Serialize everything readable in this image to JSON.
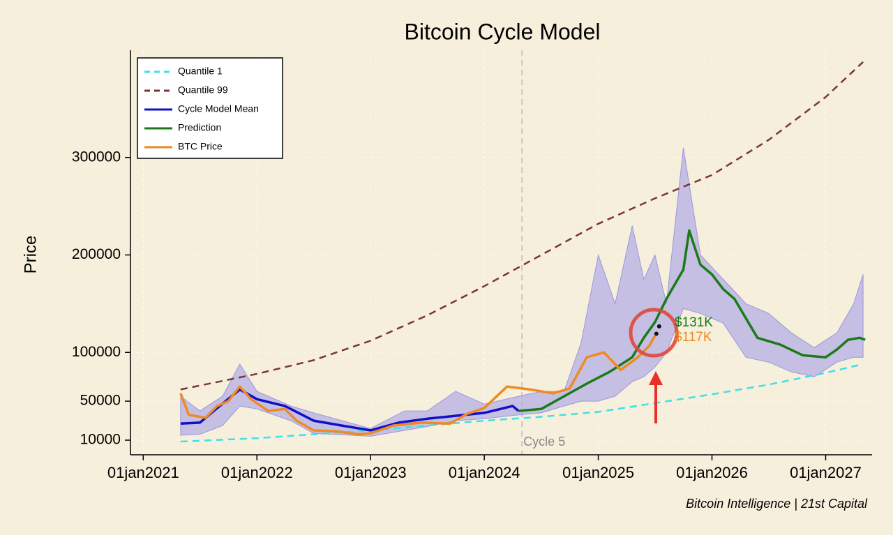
{
  "chart_data": {
    "type": "line",
    "title": "Bitcoin Cycle Model",
    "ylabel": "Price",
    "footer": "Bitcoin Intelligence | 21st Capital",
    "xlim": [
      "2020-11-21",
      "2027-05-30"
    ],
    "ylim": [
      0,
      410000
    ],
    "xticks": [
      {
        "value": "2021-01-01",
        "label": "01jan2021"
      },
      {
        "value": "2022-01-01",
        "label": "01jan2022"
      },
      {
        "value": "2023-01-01",
        "label": "01jan2023"
      },
      {
        "value": "2024-01-01",
        "label": "01jan2024"
      },
      {
        "value": "2025-01-01",
        "label": "01jan2025"
      },
      {
        "value": "2026-01-01",
        "label": "01jan2026"
      },
      {
        "value": "2027-01-01",
        "label": "01jan2027"
      }
    ],
    "yticks": [
      10000,
      50000,
      100000,
      200000,
      300000
    ],
    "grid": true,
    "legend": "top-left",
    "cycle_marker": {
      "label": "Cycle 5",
      "x": "2024-05-01"
    },
    "annotations": [
      {
        "text": "$131K",
        "color": "#1a7a1a"
      },
      {
        "text": "$117K",
        "color": "#f08a20"
      }
    ],
    "band": {
      "color": "#b4afe6",
      "x": [
        "2021-05-01",
        "2021-07-02",
        "2021-09-13",
        "2021-11-07",
        "2022-01-01",
        "2022-04-20",
        "2022-07-02",
        "2023-01-01",
        "2023-04-20",
        "2023-07-02",
        "2023-10-01",
        "2024-01-01",
        "2024-04-20",
        "2024-07-02",
        "2024-09-13",
        "2024-11-07",
        "2025-01-01",
        "2025-02-24",
        "2025-04-20",
        "2025-05-27",
        "2025-07-02",
        "2025-08-08",
        "2025-10-01",
        "2025-11-25",
        "2026-02-06",
        "2026-04-20",
        "2026-07-02",
        "2026-09-13",
        "2026-11-25",
        "2027-02-06",
        "2027-04-01",
        "2027-05-01"
      ],
      "upper": [
        55000,
        40000,
        55000,
        88000,
        60000,
        45000,
        38000,
        22000,
        40000,
        40000,
        60000,
        47000,
        55000,
        60000,
        60000,
        110000,
        200000,
        150000,
        230000,
        175000,
        200000,
        150000,
        310000,
        200000,
        175000,
        150000,
        140000,
        120000,
        105000,
        120000,
        150000,
        180000
      ],
      "lower": [
        15000,
        16000,
        25000,
        45000,
        42000,
        30000,
        17000,
        14000,
        20000,
        24000,
        30000,
        32000,
        36000,
        38000,
        45000,
        50000,
        50000,
        55000,
        70000,
        75000,
        85000,
        100000,
        145000,
        140000,
        130000,
        95000,
        90000,
        80000,
        75000,
        90000,
        95000,
        95000
      ]
    },
    "series": [
      {
        "name": "Quantile 1",
        "color": "#3de0e8",
        "dash": true,
        "x": [
          "2021-05-01",
          "2022-01-01",
          "2022-07-02",
          "2023-01-01",
          "2023-07-02",
          "2024-01-01",
          "2024-07-02",
          "2025-01-01",
          "2025-07-02",
          "2026-01-01",
          "2026-07-02",
          "2027-01-01",
          "2027-05-01"
        ],
        "values": [
          8600,
          12000,
          16000,
          20000,
          25000,
          30000,
          34000,
          39000,
          48000,
          57000,
          67000,
          79000,
          88000
        ]
      },
      {
        "name": "Quantile 99",
        "color": "#7a3535",
        "dash": true,
        "x": [
          "2021-05-01",
          "2022-01-01",
          "2022-07-02",
          "2023-01-01",
          "2023-07-02",
          "2024-01-01",
          "2024-07-02",
          "2025-01-01",
          "2025-07-02",
          "2026-01-01",
          "2026-07-02",
          "2027-01-01",
          "2027-05-01"
        ],
        "values": [
          62000,
          78000,
          92000,
          112000,
          138000,
          168000,
          200000,
          232000,
          258000,
          282000,
          318000,
          362000,
          398000
        ]
      },
      {
        "name": "Cycle Model Mean",
        "color": "#1010c8",
        "dash": false,
        "x": [
          "2021-05-01",
          "2021-07-02",
          "2021-08-08",
          "2021-11-07",
          "2022-01-01",
          "2022-04-01",
          "2022-07-02",
          "2022-10-01",
          "2023-01-01",
          "2023-04-01",
          "2023-07-02",
          "2023-10-01",
          "2024-01-01",
          "2024-04-01",
          "2024-04-20"
        ],
        "values": [
          27000,
          28000,
          38000,
          62000,
          52000,
          45000,
          30000,
          25000,
          20000,
          28000,
          32000,
          35000,
          38000,
          45000,
          40000
        ]
      },
      {
        "name": "Prediction",
        "color": "#1a7a1a",
        "dash": false,
        "x": [
          "2024-04-20",
          "2024-07-02",
          "2024-09-13",
          "2024-11-25",
          "2025-02-06",
          "2025-04-20",
          "2025-05-27",
          "2025-07-02",
          "2025-08-08",
          "2025-10-01",
          "2025-10-20",
          "2025-11-25",
          "2026-01-01",
          "2026-02-06",
          "2026-03-14",
          "2026-05-27",
          "2026-08-08",
          "2026-10-20",
          "2027-01-01",
          "2027-02-06",
          "2027-03-14",
          "2027-04-20",
          "2027-05-08"
        ],
        "values": [
          40000,
          42000,
          55000,
          68000,
          80000,
          95000,
          115000,
          131000,
          155000,
          185000,
          225000,
          190000,
          180000,
          165000,
          155000,
          115000,
          108000,
          97000,
          95000,
          103000,
          113000,
          115000,
          113000
        ]
      },
      {
        "name": "BTC Price",
        "color": "#f08a20",
        "dash": false,
        "x": [
          "2021-05-01",
          "2021-05-27",
          "2021-07-20",
          "2021-08-26",
          "2021-10-01",
          "2021-11-07",
          "2021-12-13",
          "2022-02-06",
          "2022-04-01",
          "2022-05-08",
          "2022-07-02",
          "2022-09-13",
          "2022-11-25",
          "2023-01-01",
          "2023-03-14",
          "2023-06-14",
          "2023-09-13",
          "2023-11-07",
          "2024-01-01",
          "2024-03-14",
          "2024-05-27",
          "2024-08-08",
          "2024-10-01",
          "2024-11-25",
          "2025-01-19",
          "2025-03-14",
          "2025-05-08",
          "2025-06-14",
          "2025-07-02"
        ],
        "values": [
          58000,
          36000,
          33000,
          45000,
          50000,
          65000,
          52000,
          40000,
          42000,
          30000,
          20000,
          19000,
          16000,
          17000,
          25000,
          28000,
          27000,
          37000,
          43000,
          65000,
          62000,
          58000,
          63000,
          95000,
          100000,
          82000,
          95000,
          107000,
          117000
        ]
      }
    ]
  }
}
